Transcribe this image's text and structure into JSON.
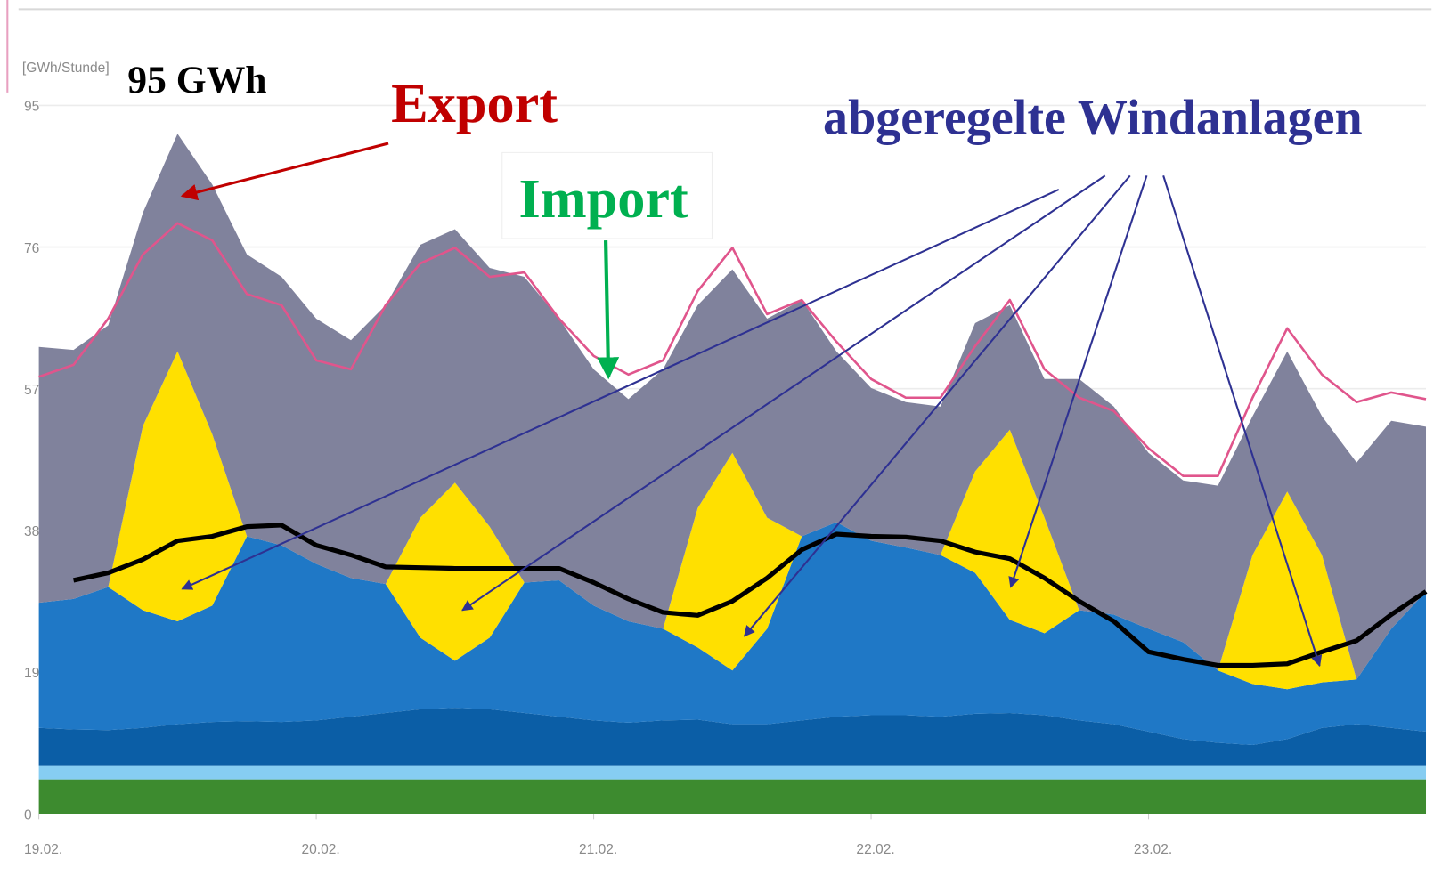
{
  "chart_data": {
    "type": "area",
    "stacked": true,
    "y_label": "[GWh/Stunde]",
    "x": [
      0,
      3,
      6,
      9,
      12,
      15,
      18,
      21,
      24,
      27,
      30,
      33,
      36,
      39,
      42,
      45,
      48,
      51,
      54,
      57,
      60,
      63,
      66,
      69,
      72,
      75,
      78,
      81,
      84,
      87,
      90,
      93,
      96,
      99,
      102,
      105,
      108,
      111,
      114,
      117,
      120
    ],
    "xlim": [
      0,
      120
    ],
    "xticks": [
      {
        "value": 0,
        "label": "19.02."
      },
      {
        "value": 24,
        "label": "20.02."
      },
      {
        "value": 48,
        "label": "21.02."
      },
      {
        "value": 72,
        "label": "22.02."
      },
      {
        "value": 96,
        "label": "23.02."
      }
    ],
    "ylim": [
      0,
      95
    ],
    "yticks": [
      0,
      19,
      38,
      57,
      76,
      95
    ],
    "grid": true,
    "series": [
      {
        "color": "#3d8b2f",
        "values": [
          4.6,
          4.6,
          4.6,
          4.6,
          4.6,
          4.6,
          4.6,
          4.6,
          4.6,
          4.6,
          4.6,
          4.6,
          4.6,
          4.6,
          4.6,
          4.6,
          4.6,
          4.6,
          4.6,
          4.6,
          4.6,
          4.6,
          4.6,
          4.6,
          4.6,
          4.6,
          4.6,
          4.6,
          4.6,
          4.6,
          4.6,
          4.6,
          4.6,
          4.6,
          4.6,
          4.6,
          4.6,
          4.6,
          4.6,
          4.6,
          4.6
        ]
      },
      {
        "color": "#86cdf2",
        "values": [
          1.9,
          1.9,
          1.9,
          1.9,
          1.9,
          1.9,
          1.9,
          1.9,
          1.9,
          1.9,
          1.9,
          1.9,
          1.9,
          1.9,
          1.9,
          1.9,
          1.9,
          1.9,
          1.9,
          1.9,
          1.9,
          1.9,
          1.9,
          1.9,
          1.9,
          1.9,
          1.9,
          1.9,
          1.9,
          1.9,
          1.9,
          1.9,
          1.9,
          1.9,
          1.9,
          1.9,
          1.9,
          1.9,
          1.9,
          1.9,
          1.9
        ]
      },
      {
        "color": "#0b5ea6",
        "values": [
          5,
          4.8,
          4.7,
          5,
          5.5,
          5.8,
          5.9,
          5.8,
          6,
          6.5,
          7,
          7.5,
          7.7,
          7.5,
          7,
          6.5,
          6,
          5.7,
          6,
          6.1,
          5.5,
          5.5,
          6,
          6.5,
          6.7,
          6.7,
          6.5,
          6.9,
          7,
          6.7,
          6,
          5.5,
          4.5,
          3.5,
          3,
          2.7,
          3.5,
          5,
          5.5,
          5,
          4.5
        ]
      },
      {
        "color": "#1f78c6",
        "values": [
          16.8,
          17.5,
          19.2,
          15.8,
          13.8,
          15.6,
          24.8,
          23.7,
          21,
          18.6,
          17.3,
          9.6,
          6.3,
          9.6,
          17.5,
          18.3,
          15.4,
          13.6,
          12.3,
          9.7,
          7.2,
          12.8,
          24.7,
          26.1,
          23.4,
          22.5,
          21.7,
          18.9,
          12.5,
          11,
          14.8,
          14.7,
          13.8,
          13,
          9.7,
          8.2,
          6.7,
          6.1,
          6,
          13.3,
          18.8
        ]
      },
      {
        "color": "#ffe000",
        "values": [
          0,
          0,
          0,
          24.7,
          36.2,
          23,
          0,
          0,
          0,
          0,
          0,
          16.1,
          23.9,
          14.9,
          0,
          0,
          0,
          0,
          0,
          18.7,
          29.2,
          14.9,
          0,
          0,
          0,
          0,
          0,
          13.6,
          25.5,
          15.5,
          0,
          0,
          0,
          0,
          0,
          17.3,
          26.5,
          17.1,
          0,
          0,
          0
        ]
      },
      {
        "color": "#80829c",
        "values": [
          34.3,
          33.4,
          35.1,
          28.6,
          29.2,
          33.5,
          37.8,
          36,
          32.9,
          31.9,
          37.4,
          36.6,
          34,
          34.7,
          41,
          35.1,
          31.7,
          29.8,
          34.8,
          27.2,
          24.6,
          26.7,
          31.7,
          22.9,
          20.5,
          19.5,
          19.9,
          19.9,
          16.7,
          18.6,
          31,
          27.9,
          23.6,
          21.7,
          24.8,
          18.6,
          18.8,
          18.6,
          29.1,
          27.9,
          22.1
        ]
      },
      {
        "type": "line",
        "color": "#e0558c",
        "values": [
          58.6,
          60.2,
          66.4,
          75,
          79.2,
          76.9,
          69.7,
          68.2,
          60.8,
          59.6,
          68.2,
          73.8,
          75.9,
          72,
          72.6,
          66.4,
          61.4,
          58.9,
          60.8,
          70.1,
          75.9,
          67,
          68.9,
          63.3,
          58.3,
          55.8,
          55.8,
          62.7,
          68.9,
          59.6,
          55.8,
          54,
          49,
          45.3,
          45.3,
          55.8,
          65.1,
          58.9,
          55.2,
          56.5,
          55.6
        ]
      },
      {
        "type": "line",
        "color": "#000000",
        "values": [
          null,
          31.3,
          32.3,
          34.1,
          36.6,
          37.2,
          38.5,
          38.7,
          36,
          34.7,
          33.1,
          33,
          32.9,
          32.9,
          32.9,
          32.9,
          31,
          28.8,
          27,
          26.6,
          28.5,
          31.6,
          35.4,
          37.5,
          37.2,
          37.1,
          36.6,
          35.1,
          34.2,
          31.6,
          28.5,
          25.8,
          21.7,
          20.7,
          19.9,
          19.9,
          20.1,
          21.7,
          23.2,
          26.7,
          29.8
        ]
      }
    ],
    "annotations": [
      {
        "text": "95 GWh",
        "color": "#000000"
      },
      {
        "text": "Export",
        "color": "#c00000"
      },
      {
        "text": "Import",
        "color": "#00b050"
      },
      {
        "text": "abgeregelte Windanlagen",
        "color": "#2e3192"
      }
    ]
  }
}
